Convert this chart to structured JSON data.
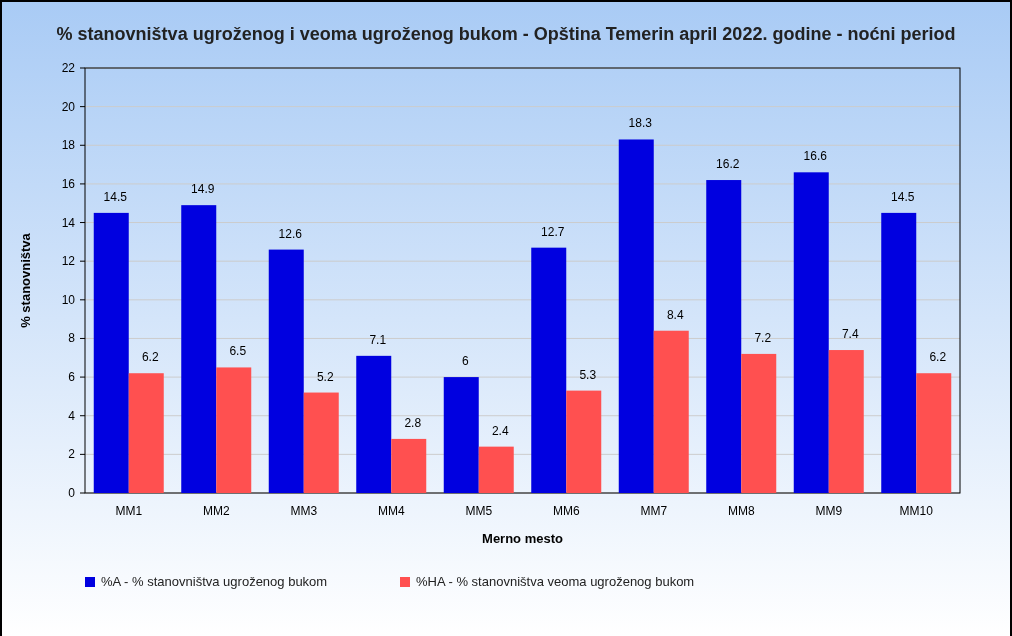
{
  "chart_data": {
    "type": "bar",
    "title": "% stanovništva ugroženog i veoma ugroženog bukom - Opština Temerin april 2022. godine - noćni period",
    "xlabel": "Merno mesto",
    "ylabel": "% stanovništva",
    "categories": [
      "MM1",
      "MM2",
      "MM3",
      "MM4",
      "MM5",
      "MM6",
      "MM7",
      "MM8",
      "MM9",
      "MM10"
    ],
    "series": [
      {
        "name": "%A - % stanovništva ugroženog bukom",
        "color": "#0000e0",
        "values": [
          14.5,
          14.9,
          12.6,
          7.1,
          6,
          12.7,
          18.3,
          16.2,
          16.6,
          14.5
        ]
      },
      {
        "name": "%HA - % stanovništva veoma ugroženog bukom",
        "color": "#ff5050",
        "values": [
          6.2,
          6.5,
          5.2,
          2.8,
          2.4,
          5.3,
          8.4,
          7.2,
          7.4,
          6.2
        ]
      }
    ],
    "ylim": [
      0,
      22
    ],
    "yticks": [
      0,
      2,
      4,
      6,
      8,
      10,
      12,
      14,
      16,
      18,
      20,
      22
    ],
    "grid": "y",
    "legend": "bottom left",
    "data_labels": true
  }
}
